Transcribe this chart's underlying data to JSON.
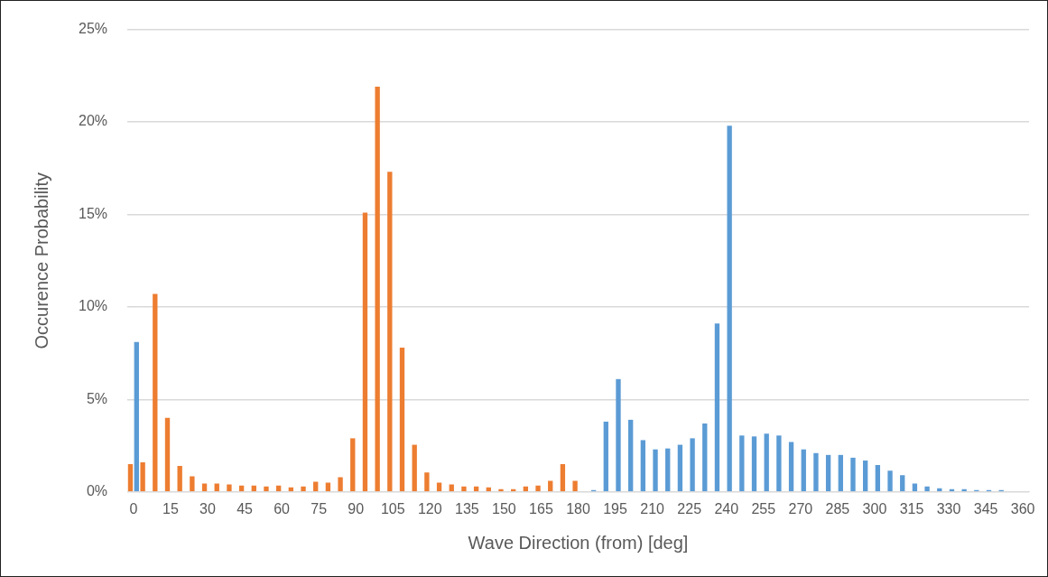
{
  "chart_data": {
    "type": "bar",
    "xlabel": "Wave Direction (from) [deg]",
    "ylabel": "Occurence Probability",
    "categories": [
      "0",
      null,
      null,
      "15",
      null,
      null,
      "30",
      null,
      null,
      "45",
      null,
      null,
      "60",
      null,
      null,
      "75",
      null,
      null,
      "90",
      null,
      null,
      "105",
      null,
      null,
      "120",
      null,
      null,
      "135",
      null,
      null,
      "150",
      null,
      null,
      "165",
      null,
      null,
      "180",
      null,
      null,
      "195",
      null,
      null,
      "210",
      null,
      null,
      "225",
      null,
      null,
      "240",
      null,
      null,
      "255",
      null,
      null,
      "270",
      null,
      null,
      "285",
      null,
      null,
      "300",
      null,
      null,
      "315",
      null,
      null,
      "330",
      null,
      null,
      "345",
      null,
      null,
      "360"
    ],
    "series": [
      {
        "color": "#ed7d31",
        "values": [
          1.5,
          1.6,
          10.7,
          4.0,
          1.4,
          0.85,
          0.45,
          0.45,
          0.4,
          0.35,
          0.35,
          0.3,
          0.35,
          0.25,
          0.3,
          0.55,
          0.5,
          0.8,
          2.9,
          15.1,
          21.9,
          17.3,
          7.8,
          2.55,
          1.05,
          0.5,
          0.4,
          0.3,
          0.3,
          0.25,
          0.15,
          0.15,
          0.3,
          0.35,
          0.6,
          1.5,
          0.6,
          null,
          null,
          null,
          null,
          null,
          null,
          null,
          null,
          null,
          null,
          null,
          null,
          null,
          null,
          null,
          null,
          null,
          null,
          null,
          null,
          null,
          null,
          null,
          null,
          null,
          null,
          null,
          null,
          null,
          null,
          null,
          null,
          null,
          null,
          null,
          null
        ]
      },
      {
        "color": "#5b9bd5",
        "values": [
          8.1,
          null,
          null,
          null,
          null,
          null,
          null,
          null,
          null,
          null,
          null,
          null,
          null,
          null,
          null,
          null,
          null,
          null,
          null,
          null,
          null,
          null,
          null,
          null,
          null,
          null,
          null,
          null,
          null,
          null,
          null,
          null,
          null,
          null,
          null,
          null,
          null,
          0.1,
          3.8,
          6.1,
          3.9,
          2.8,
          2.3,
          2.35,
          2.55,
          2.9,
          3.7,
          9.1,
          19.8,
          3.05,
          3.0,
          3.15,
          3.05,
          2.7,
          2.3,
          2.1,
          2.0,
          2.0,
          1.85,
          1.7,
          1.45,
          1.15,
          0.9,
          0.45,
          0.3,
          0.2,
          0.15,
          0.15,
          0.1,
          0.1,
          0.1,
          null,
          null
        ]
      }
    ],
    "ylim": [
      0,
      25
    ],
    "yticks": [
      {
        "value": 0,
        "label": "0%"
      },
      {
        "value": 5,
        "label": "5%"
      },
      {
        "value": 10,
        "label": "10%"
      },
      {
        "value": 15,
        "label": "15%"
      },
      {
        "value": 20,
        "label": "20%"
      },
      {
        "value": 25,
        "label": "25%"
      }
    ],
    "grid": "y",
    "legend": false
  }
}
